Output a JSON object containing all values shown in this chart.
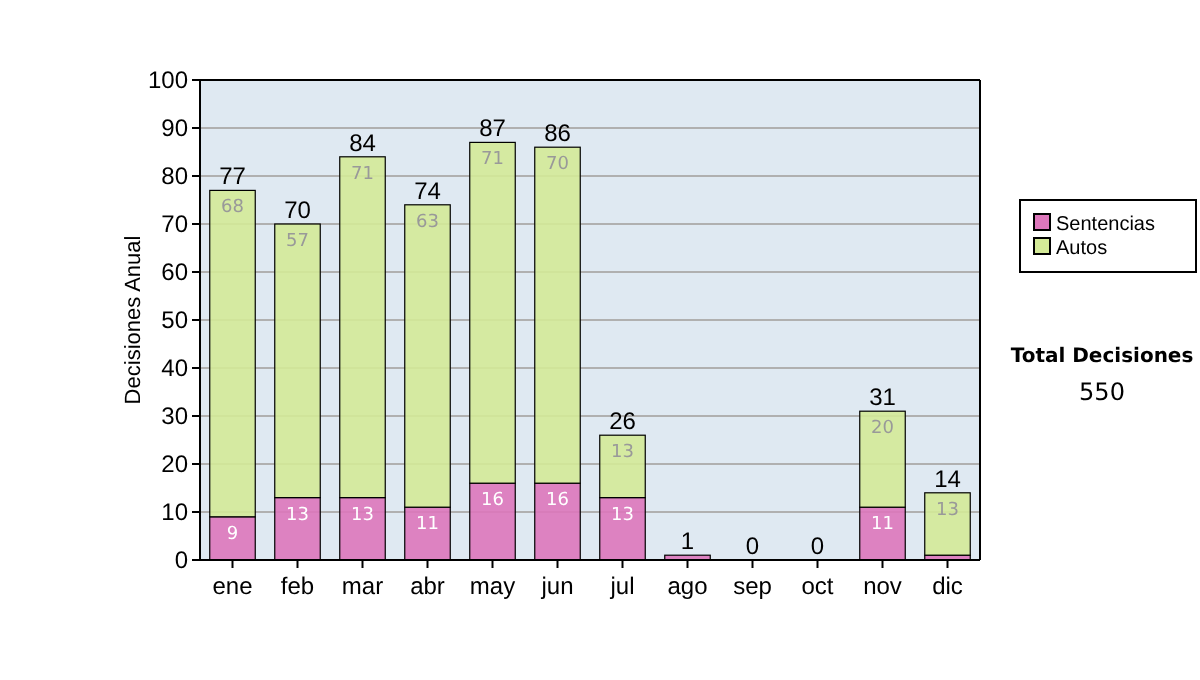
{
  "chart_data": {
    "type": "bar",
    "ylabel": "Decisiones Anual",
    "categories": [
      "ene",
      "feb",
      "mar",
      "abr",
      "may",
      "jun",
      "jul",
      "ago",
      "sep",
      "oct",
      "nov",
      "dic"
    ],
    "stacked": true,
    "ylim": [
      0,
      100
    ],
    "yticks": [
      0,
      10,
      20,
      30,
      40,
      50,
      60,
      70,
      80,
      90,
      100
    ],
    "grid": "y",
    "legend": "right",
    "series": [
      {
        "name": "Sentencias",
        "color": "#dd77bb",
        "values": [
          9,
          13,
          13,
          11,
          16,
          16,
          13,
          1,
          0,
          0,
          11,
          1
        ],
        "value_labels": [
          "9",
          "13",
          "13",
          "11",
          "16",
          "16",
          "13",
          null,
          null,
          null,
          "11",
          null
        ]
      },
      {
        "name": "Autos",
        "color": "#d4ea98",
        "values": [
          68,
          57,
          71,
          63,
          71,
          70,
          13,
          0,
          0,
          0,
          20,
          13
        ],
        "value_labels": [
          "68",
          "57",
          "71",
          "63",
          "71",
          "70",
          "13",
          null,
          null,
          null,
          "20",
          "13"
        ]
      }
    ],
    "totals": [
      "77",
      "70",
      "84",
      "74",
      "87",
      "86",
      "26",
      "1",
      "0",
      "0",
      "31",
      "14"
    ],
    "annotations": [
      "Total Decisiones",
      "550"
    ]
  }
}
